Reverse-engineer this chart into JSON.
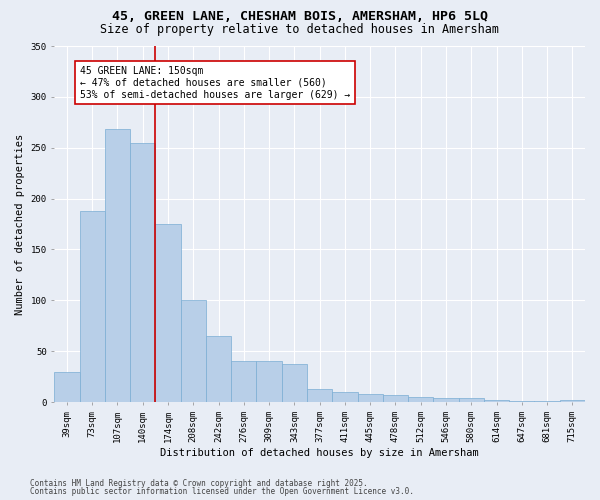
{
  "title1": "45, GREEN LANE, CHESHAM BOIS, AMERSHAM, HP6 5LQ",
  "title2": "Size of property relative to detached houses in Amersham",
  "xlabel": "Distribution of detached houses by size in Amersham",
  "ylabel": "Number of detached properties",
  "categories": [
    "39sqm",
    "73sqm",
    "107sqm",
    "140sqm",
    "174sqm",
    "208sqm",
    "242sqm",
    "276sqm",
    "309sqm",
    "343sqm",
    "377sqm",
    "411sqm",
    "445sqm",
    "478sqm",
    "512sqm",
    "546sqm",
    "580sqm",
    "614sqm",
    "647sqm",
    "681sqm",
    "715sqm"
  ],
  "values": [
    30,
    188,
    268,
    255,
    175,
    100,
    65,
    40,
    40,
    37,
    13,
    10,
    8,
    7,
    5,
    4,
    4,
    2,
    1,
    1,
    2
  ],
  "bar_color": "#b8cfe8",
  "bar_edge_color": "#7aadd4",
  "background_color": "#e8edf5",
  "grid_color": "#ffffff",
  "vline_x_index": 3,
  "vline_color": "#cc0000",
  "annotation_text": "45 GREEN LANE: 150sqm\n← 47% of detached houses are smaller (560)\n53% of semi-detached houses are larger (629) →",
  "annotation_box_color": "#ffffff",
  "annotation_box_edge": "#cc0000",
  "ylim": [
    0,
    350
  ],
  "yticks": [
    0,
    50,
    100,
    150,
    200,
    250,
    300,
    350
  ],
  "footer1": "Contains HM Land Registry data © Crown copyright and database right 2025.",
  "footer2": "Contains public sector information licensed under the Open Government Licence v3.0.",
  "title_fontsize": 9.5,
  "subtitle_fontsize": 8.5,
  "axis_label_fontsize": 7.5,
  "tick_fontsize": 6.5,
  "annotation_fontsize": 7.0,
  "footer_fontsize": 5.5
}
